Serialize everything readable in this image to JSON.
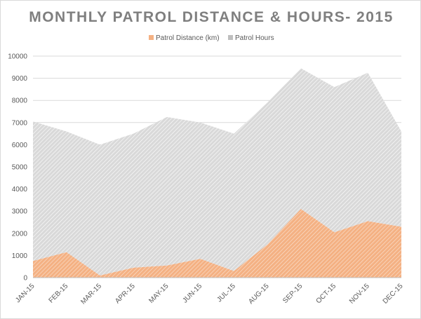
{
  "chart_data": {
    "type": "area",
    "title": "MONTHLY PATROL DISTANCE & HOURS- 2015",
    "xlabel": "",
    "ylabel": "",
    "categories": [
      "JAN-15",
      "FEB-15",
      "MAR-15",
      "APR-15",
      "MAY-15",
      "JUN-15",
      "JUL-15",
      "AUG-15",
      "SEP-15",
      "OCT-15",
      "NOV-15",
      "DEC-15"
    ],
    "stacked": true,
    "series": [
      {
        "name": "Patrol Distance (km)",
        "color": "#f4b183",
        "values": [
          750,
          1150,
          100,
          450,
          550,
          850,
          300,
          1500,
          3100,
          2050,
          2550,
          2300
        ]
      },
      {
        "name": "Patrol Hours",
        "color": "#bfbfbf",
        "values": [
          6300,
          5450,
          5900,
          6050,
          6700,
          6150,
          6200,
          6400,
          6350,
          6550,
          6700,
          4300
        ]
      }
    ],
    "ylim": [
      0,
      10000
    ],
    "yticks": [
      0,
      1000,
      2000,
      3000,
      4000,
      5000,
      6000,
      7000,
      8000,
      9000,
      10000
    ],
    "grid": true,
    "legend_position": "top"
  }
}
